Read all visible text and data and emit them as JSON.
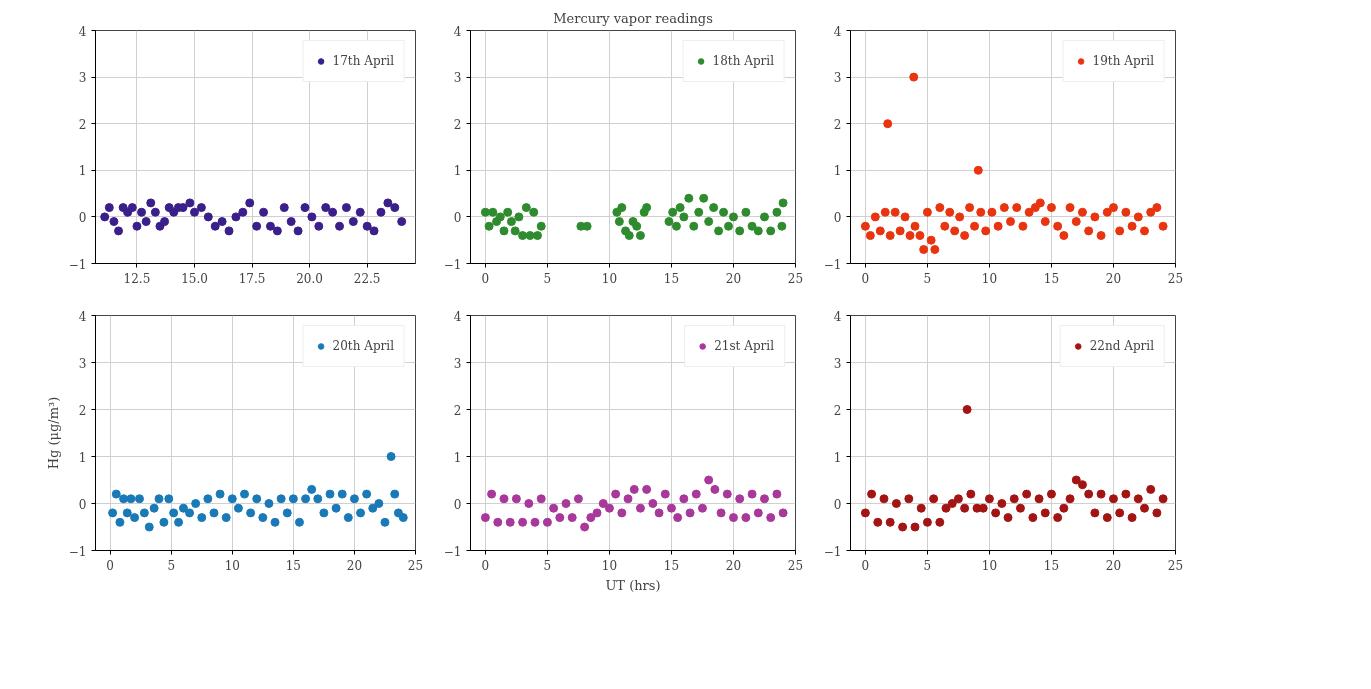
{
  "chart_data": [
    {
      "type": "scatter",
      "xlim": [
        10.7,
        24.6
      ],
      "ylim": [
        -1,
        4
      ],
      "xticks": [
        12.5,
        {
          "value": 15,
          "label": "15.0"
        },
        17.5,
        {
          "value": 20,
          "label": "20.0"
        },
        22.5
      ],
      "yticks": [
        -1,
        0,
        1,
        2,
        3,
        4
      ],
      "grid": true,
      "legend": "top right",
      "marker": "circle",
      "series": [
        {
          "name": "17th April",
          "color": "#3b1f8a",
          "x": [
            11.1,
            11.3,
            11.5,
            11.7,
            11.9,
            12.1,
            12.3,
            12.5,
            12.7,
            12.9,
            13.1,
            13.3,
            13.5,
            13.7,
            13.9,
            14.1,
            14.3,
            14.5,
            14.8,
            15.0,
            15.3,
            15.6,
            15.9,
            16.2,
            16.5,
            16.8,
            17.1,
            17.4,
            17.7,
            18.0,
            18.3,
            18.6,
            18.9,
            19.2,
            19.5,
            19.8,
            20.1,
            20.4,
            20.7,
            21.0,
            21.3,
            21.6,
            21.9,
            22.2,
            22.5,
            22.8,
            23.1,
            23.4,
            23.7,
            24.0
          ],
          "values": [
            0,
            0.2,
            -0.1,
            -0.3,
            0.2,
            0.1,
            0.2,
            -0.2,
            0.1,
            -0.1,
            0.3,
            0.1,
            -0.2,
            -0.1,
            0.2,
            0.1,
            0.2,
            0.2,
            0.3,
            0.1,
            0.2,
            0,
            -0.2,
            -0.1,
            -0.3,
            0,
            0.1,
            0.3,
            -0.2,
            0.1,
            -0.2,
            -0.3,
            0.2,
            -0.1,
            -0.3,
            0.2,
            0,
            -0.2,
            0.2,
            0.1,
            -0.2,
            0.2,
            -0.1,
            0.1,
            -0.2,
            -0.3,
            0.1,
            0.3,
            0.2,
            -0.1
          ]
        }
      ]
    },
    {
      "type": "scatter",
      "title": "Mercury vapor readings",
      "xlim": [
        -1.2,
        25
      ],
      "ylim": [
        -1,
        4
      ],
      "xticks": [
        0,
        5,
        10,
        15,
        20,
        25
      ],
      "yticks": [
        -1,
        0,
        1,
        2,
        3,
        4
      ],
      "grid": true,
      "legend": "top right",
      "marker": "circle",
      "series": [
        {
          "name": "18th April",
          "color": "#2e8b2e",
          "x": [
            0,
            0.3,
            0.6,
            0.9,
            1.2,
            1.5,
            1.8,
            2.1,
            2.4,
            2.7,
            3.0,
            3.3,
            3.6,
            3.9,
            4.2,
            4.5,
            7.7,
            8.2,
            10.6,
            10.8,
            11.0,
            11.3,
            11.6,
            11.9,
            12.2,
            12.5,
            12.8,
            13.0,
            14.8,
            15.1,
            15.4,
            15.7,
            16.0,
            16.4,
            16.8,
            17.2,
            17.6,
            18.0,
            18.4,
            18.8,
            19.2,
            19.6,
            20.0,
            20.5,
            21.0,
            21.5,
            22.0,
            22.5,
            23.0,
            23.5,
            23.9,
            24.0
          ],
          "values": [
            0.1,
            -0.2,
            0.1,
            -0.1,
            0,
            -0.3,
            0.1,
            -0.1,
            -0.3,
            0,
            -0.4,
            0.2,
            -0.4,
            0.1,
            -0.4,
            -0.2,
            -0.2,
            -0.2,
            0.1,
            -0.1,
            0.2,
            -0.3,
            -0.4,
            -0.1,
            -0.2,
            -0.4,
            0.1,
            0.2,
            -0.1,
            0.1,
            -0.2,
            0.2,
            0,
            0.4,
            -0.2,
            0.1,
            0.4,
            -0.1,
            0.2,
            -0.3,
            0.1,
            -0.2,
            0,
            -0.3,
            0.1,
            -0.2,
            -0.3,
            0,
            -0.3,
            0.1,
            -0.2,
            0.3
          ]
        }
      ]
    },
    {
      "type": "scatter",
      "xlim": [
        -1.2,
        25
      ],
      "ylim": [
        -1,
        4
      ],
      "xticks": [
        0,
        5,
        10,
        15,
        20,
        25
      ],
      "yticks": [
        -1,
        0,
        1,
        2,
        3,
        4
      ],
      "grid": true,
      "legend": "top right",
      "marker": "circle",
      "series": [
        {
          "name": "19th April",
          "color": "#e8340f",
          "x": [
            0,
            0.4,
            0.8,
            1.2,
            1.6,
            1.8,
            2.0,
            2.4,
            2.8,
            3.2,
            3.6,
            3.9,
            4.0,
            4.4,
            4.7,
            5.0,
            5.3,
            5.6,
            6.0,
            6.4,
            6.8,
            7.2,
            7.6,
            8.0,
            8.4,
            8.8,
            9.1,
            9.3,
            9.7,
            10.2,
            10.7,
            11.2,
            11.7,
            12.2,
            12.7,
            13.2,
            13.7,
            14.1,
            14.5,
            15.0,
            15.5,
            16.0,
            16.5,
            17.0,
            17.5,
            18.0,
            18.5,
            19.0,
            19.5,
            20.0,
            20.5,
            21.0,
            21.5,
            22.0,
            22.5,
            23.0,
            23.5,
            24.0
          ],
          "values": [
            -0.2,
            -0.4,
            0,
            -0.3,
            0.1,
            2,
            -0.4,
            0.1,
            -0.3,
            0,
            -0.4,
            3,
            -0.2,
            -0.4,
            -0.7,
            0.1,
            -0.5,
            -0.7,
            0.2,
            -0.2,
            0.1,
            -0.3,
            0,
            -0.4,
            0.2,
            -0.2,
            1,
            0.1,
            -0.3,
            0.1,
            -0.2,
            0.2,
            -0.1,
            0.2,
            -0.2,
            0.1,
            0.2,
            0.3,
            -0.1,
            0.2,
            -0.2,
            -0.4,
            0.2,
            -0.1,
            0.1,
            -0.3,
            0,
            -0.4,
            0.1,
            0.2,
            -0.3,
            0.1,
            -0.2,
            0,
            -0.3,
            0.1,
            0.2,
            -0.2
          ]
        }
      ]
    },
    {
      "type": "scatter",
      "ylabel": "Hg (μg/m³)",
      "xlim": [
        -1.2,
        25
      ],
      "ylim": [
        -1,
        4
      ],
      "xticks": [
        0,
        5,
        10,
        15,
        20,
        25
      ],
      "yticks": [
        -1,
        0,
        1,
        2,
        3,
        4
      ],
      "grid": true,
      "legend": "top right",
      "marker": "circle",
      "series": [
        {
          "name": "20th April",
          "color": "#1a7ab8",
          "x": [
            0.2,
            0.5,
            0.8,
            1.1,
            1.4,
            1.7,
            2.0,
            2.4,
            2.8,
            3.2,
            3.6,
            4.0,
            4.4,
            4.8,
            5.2,
            5.6,
            6.0,
            6.5,
            7.0,
            7.5,
            8.0,
            8.5,
            9.0,
            9.5,
            10.0,
            10.5,
            11.0,
            11.5,
            12.0,
            12.5,
            13.0,
            13.5,
            14.0,
            14.5,
            15.0,
            15.5,
            16.0,
            16.5,
            17.0,
            17.5,
            18.0,
            18.5,
            19.0,
            19.5,
            20.0,
            20.5,
            21.0,
            21.5,
            22.0,
            22.5,
            23.0,
            23.3,
            23.6,
            24.0
          ],
          "values": [
            -0.2,
            0.2,
            -0.4,
            0.1,
            -0.2,
            0.1,
            -0.3,
            0.1,
            -0.2,
            -0.5,
            -0.1,
            0.1,
            -0.4,
            0.1,
            -0.2,
            -0.4,
            -0.1,
            -0.2,
            0,
            -0.3,
            0.1,
            -0.2,
            0.2,
            -0.3,
            0.1,
            -0.1,
            0.2,
            -0.2,
            0.1,
            -0.3,
            0,
            -0.4,
            0.1,
            -0.2,
            0.1,
            -0.4,
            0.1,
            0.3,
            0.1,
            -0.2,
            0.2,
            -0.1,
            0.2,
            -0.3,
            0.1,
            -0.2,
            0.2,
            -0.1,
            0,
            -0.4,
            1,
            0.2,
            -0.2,
            -0.3
          ]
        }
      ]
    },
    {
      "type": "scatter",
      "xlabel": "UT (hrs)",
      "xlim": [
        -1.2,
        25
      ],
      "ylim": [
        -1,
        4
      ],
      "xticks": [
        0,
        5,
        10,
        15,
        20,
        25
      ],
      "yticks": [
        -1,
        0,
        1,
        2,
        3,
        4
      ],
      "grid": true,
      "legend": "top right",
      "marker": "circle",
      "series": [
        {
          "name": "21st April",
          "color": "#a8389a",
          "x": [
            0,
            0.5,
            1,
            1.5,
            2,
            2.5,
            3,
            3.5,
            4,
            4.5,
            5,
            5.5,
            6,
            6.5,
            7,
            7.5,
            8,
            8.5,
            9,
            9.5,
            10,
            10.5,
            11,
            11.5,
            12,
            12.5,
            13,
            13.5,
            14,
            14.5,
            15,
            15.5,
            16,
            16.5,
            17,
            17.5,
            18,
            18.5,
            19,
            19.5,
            20,
            20.5,
            21,
            21.5,
            22,
            22.5,
            23,
            23.5,
            24
          ],
          "values": [
            -0.3,
            0.2,
            -0.4,
            0.1,
            -0.4,
            0.1,
            -0.4,
            0,
            -0.4,
            0.1,
            -0.4,
            -0.1,
            -0.3,
            0,
            -0.3,
            0.1,
            -0.5,
            -0.3,
            -0.2,
            0,
            -0.1,
            0.2,
            -0.2,
            0.1,
            0.3,
            -0.1,
            0.3,
            0,
            -0.2,
            0.2,
            -0.1,
            -0.3,
            0.1,
            -0.2,
            0.2,
            -0.1,
            0.5,
            0.3,
            -0.2,
            0.2,
            -0.3,
            0.1,
            -0.3,
            0.2,
            -0.2,
            0.1,
            -0.3,
            0.2,
            -0.2
          ]
        }
      ]
    },
    {
      "type": "scatter",
      "xlim": [
        -1.2,
        25
      ],
      "ylim": [
        -1,
        4
      ],
      "xticks": [
        0,
        5,
        10,
        15,
        20,
        25
      ],
      "yticks": [
        -1,
        0,
        1,
        2,
        3,
        4
      ],
      "grid": true,
      "legend": "top right",
      "marker": "circle",
      "series": [
        {
          "name": "22nd April",
          "color": "#a31515",
          "x": [
            0,
            0.5,
            1,
            1.5,
            2,
            2.5,
            3,
            3.5,
            4,
            4.5,
            5,
            5.5,
            6,
            6.5,
            7,
            7.5,
            8,
            8.2,
            8.5,
            9,
            9.5,
            10,
            10.5,
            11,
            11.5,
            12,
            12.5,
            13,
            13.5,
            14,
            14.5,
            15,
            15.5,
            16,
            16.5,
            17,
            17.5,
            18,
            18.5,
            19,
            19.5,
            20,
            20.5,
            21,
            21.5,
            22,
            22.5,
            23,
            23.5,
            24
          ],
          "values": [
            -0.2,
            0.2,
            -0.4,
            0.1,
            -0.4,
            0,
            -0.5,
            0.1,
            -0.5,
            -0.1,
            -0.4,
            0.1,
            -0.4,
            -0.1,
            0,
            0.1,
            -0.1,
            2,
            0.2,
            -0.1,
            -0.1,
            0.1,
            -0.2,
            0,
            -0.3,
            0.1,
            -0.1,
            0.2,
            -0.3,
            0.1,
            -0.2,
            0.2,
            -0.3,
            -0.1,
            0.1,
            0.5,
            0.4,
            0.2,
            -0.2,
            0.2,
            -0.3,
            0.1,
            -0.2,
            0.2,
            -0.3,
            0.1,
            -0.1,
            0.3,
            -0.2,
            0.1
          ]
        }
      ]
    }
  ]
}
